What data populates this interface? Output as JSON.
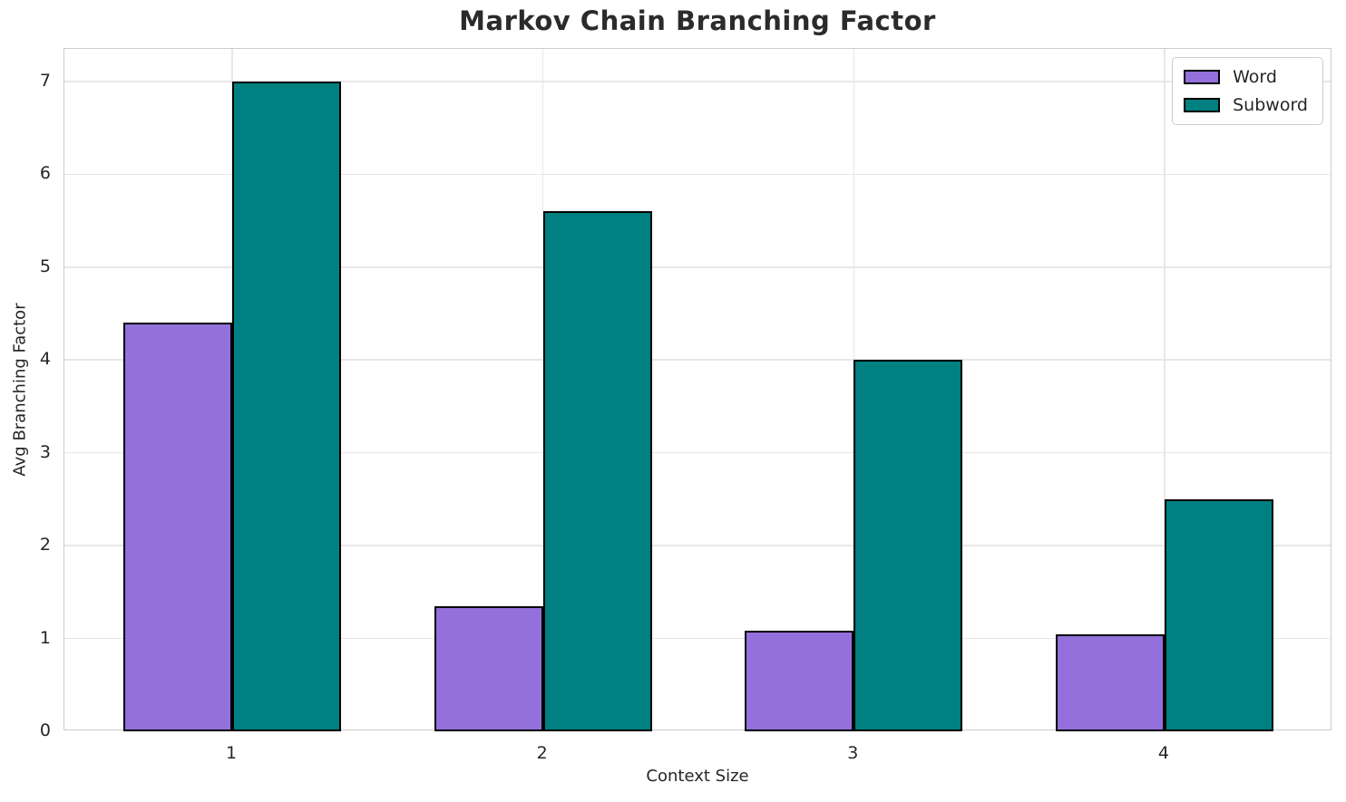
{
  "chart_data": {
    "type": "bar",
    "title": "Markov Chain Branching Factor",
    "xlabel": "Context Size",
    "ylabel": "Avg Branching Factor",
    "categories": [
      "1",
      "2",
      "3",
      "4"
    ],
    "series": [
      {
        "name": "Word",
        "color": "#9370DB",
        "values": [
          4.4,
          1.35,
          1.08,
          1.04
        ]
      },
      {
        "name": "Subword",
        "color": "#008080",
        "values": [
          7.0,
          5.6,
          4.0,
          2.5
        ]
      }
    ],
    "ylim": [
      0,
      7.35
    ],
    "yticks": [
      0,
      1,
      2,
      3,
      4,
      5,
      6,
      7
    ],
    "grid": true,
    "legend_position": "upper right",
    "bar_edge_color": "#000000",
    "layout": {
      "bar_width_units": 0.35,
      "x_margin_units": 0.54
    }
  },
  "style": {
    "background": "#ffffff",
    "text_color": "#262626",
    "grid_color": "#e7e7e7",
    "spine_color": "#cccccc",
    "legend_border_color": "#cccccc"
  }
}
